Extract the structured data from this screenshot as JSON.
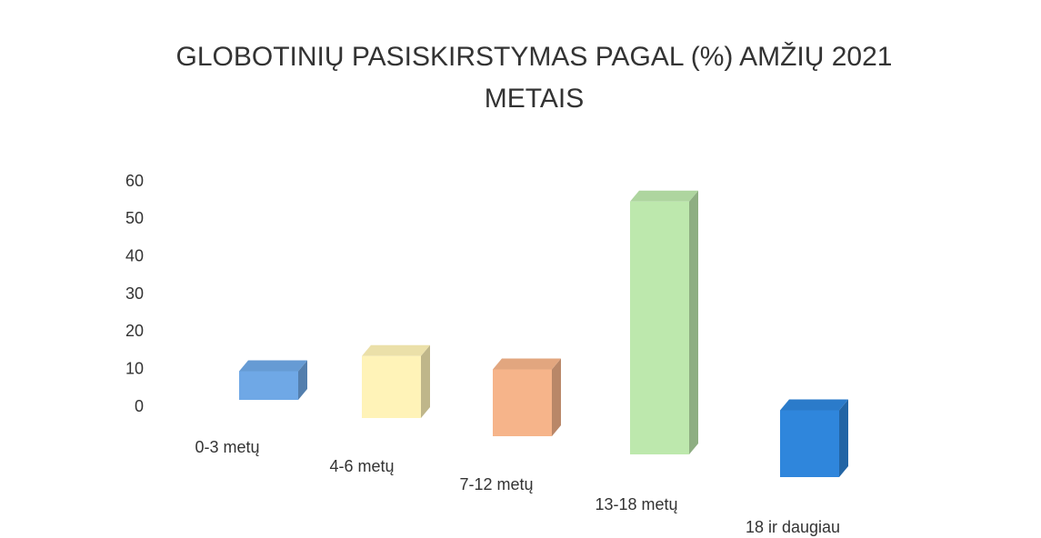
{
  "chart_data": {
    "type": "bar3d",
    "title": "GLOBOTINIŲ PASISKIRSTYMAS PAGAL (%) AMŽIŲ 2021 METAIS",
    "categories": [
      "0-3 metų",
      "4-6 metų",
      "7-12 metų",
      "13-18 metų",
      "18 ir daugiau"
    ],
    "values": [
      6,
      13,
      14,
      53,
      14
    ],
    "colors": [
      "#6fa8e6",
      "#fff3b8",
      "#f6b48a",
      "#bde8ad",
      "#2f86dc"
    ],
    "ylim": [
      0,
      60
    ],
    "yticks": [
      0,
      10,
      20,
      30,
      40,
      50,
      60
    ],
    "grid": false
  }
}
